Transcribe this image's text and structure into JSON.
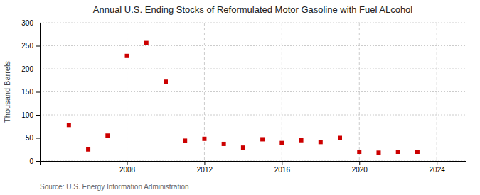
{
  "chart_data": {
    "type": "scatter",
    "title": "Annual U.S. Ending Stocks of Reformulated Motor Gasoline with Fuel ALcohol",
    "ylabel": "Thousand Barrels",
    "source": "Source: U.S. Energy Information Administration",
    "x": [
      2005,
      2006,
      2007,
      2008,
      2009,
      2010,
      2011,
      2012,
      2013,
      2014,
      2015,
      2016,
      2017,
      2018,
      2019,
      2020,
      2021,
      2022,
      2023
    ],
    "values": [
      78,
      25,
      55,
      228,
      256,
      172,
      44,
      48,
      37,
      29,
      47,
      39,
      45,
      41,
      50,
      20,
      18,
      20,
      20
    ],
    "color": "#cc0000",
    "marker": "square",
    "xlim": [
      2003.5,
      2025.5
    ],
    "xticks": [
      2008,
      2012,
      2016,
      2020,
      2024
    ],
    "ylim": [
      0,
      300
    ],
    "yticks": [
      0,
      50,
      100,
      150,
      200,
      250,
      300
    ],
    "grid": true
  }
}
